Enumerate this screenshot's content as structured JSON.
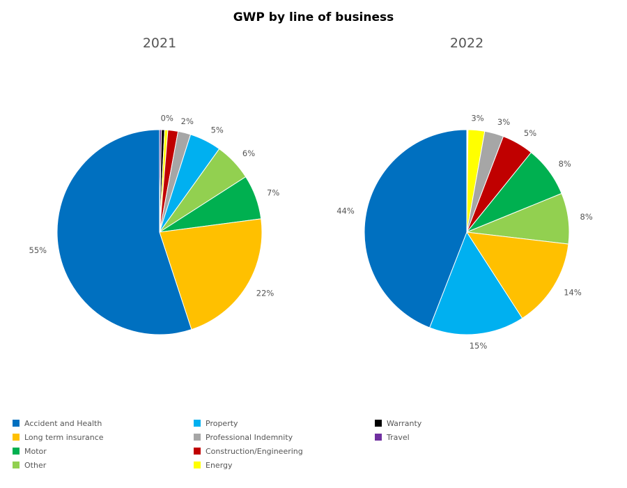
{
  "chart_data": {
    "title": "GWP by line of business",
    "type": "pie",
    "categories": [
      "Accident and Health",
      "Long term insurance",
      "Motor",
      "Other",
      "Property",
      "Professional Indemnity",
      "Construction/Engineering",
      "Energy",
      "Warranty",
      "Travel"
    ],
    "colors": {
      "Accident and Health": "#0070C0",
      "Long term insurance": "#FFC000",
      "Motor": "#00B050",
      "Other": "#92D050",
      "Property": "#00B0F0",
      "Professional Indemnity": "#A6A6A6",
      "Construction/Engineering": "#C00000",
      "Energy": "#FFFF00",
      "Warranty": "#000000",
      "Travel": "#7030A0"
    },
    "pies": [
      {
        "title": "2021",
        "slices": [
          {
            "name": "Travel",
            "value": 0.3,
            "label": ""
          },
          {
            "name": "Warranty",
            "value": 0.5,
            "label": ""
          },
          {
            "name": "Energy",
            "value": 0.5,
            "label": "0%"
          },
          {
            "name": "Construction/Engineering",
            "value": 1.6,
            "label": ""
          },
          {
            "name": "Professional Indemnity",
            "value": 2,
            "label": "2%"
          },
          {
            "name": "Property",
            "value": 5,
            "label": "5%"
          },
          {
            "name": "Other",
            "value": 6,
            "label": "6%"
          },
          {
            "name": "Motor",
            "value": 7,
            "label": "7%"
          },
          {
            "name": "Long term insurance",
            "value": 22,
            "label": "22%"
          },
          {
            "name": "Accident and Health",
            "value": 55,
            "label": "55%"
          }
        ]
      },
      {
        "title": "2022",
        "slices": [
          {
            "name": "Travel",
            "value": 0.1,
            "label": ""
          },
          {
            "name": "Warranty",
            "value": 0.1,
            "label": ""
          },
          {
            "name": "Energy",
            "value": 2.6,
            "label": "3%"
          },
          {
            "name": "Professional Indemnity",
            "value": 3,
            "label": "3%"
          },
          {
            "name": "Construction/Engineering",
            "value": 5,
            "label": "5%"
          },
          {
            "name": "Motor",
            "value": 8,
            "label": "8%"
          },
          {
            "name": "Other",
            "value": 8,
            "label": "8%"
          },
          {
            "name": "Long term insurance",
            "value": 14,
            "label": "14%"
          },
          {
            "name": "Property",
            "value": 15,
            "label": "15%"
          },
          {
            "name": "Accident and Health",
            "value": 44,
            "label": "44%"
          }
        ]
      }
    ],
    "legend": {
      "position": "bottom",
      "columns": [
        [
          "Accident and Health",
          "Long term insurance",
          "Motor",
          "Other"
        ],
        [
          "Property",
          "Professional Indemnity",
          "Construction/Engineering",
          "Energy"
        ],
        [
          "Warranty",
          "Travel"
        ]
      ]
    }
  }
}
